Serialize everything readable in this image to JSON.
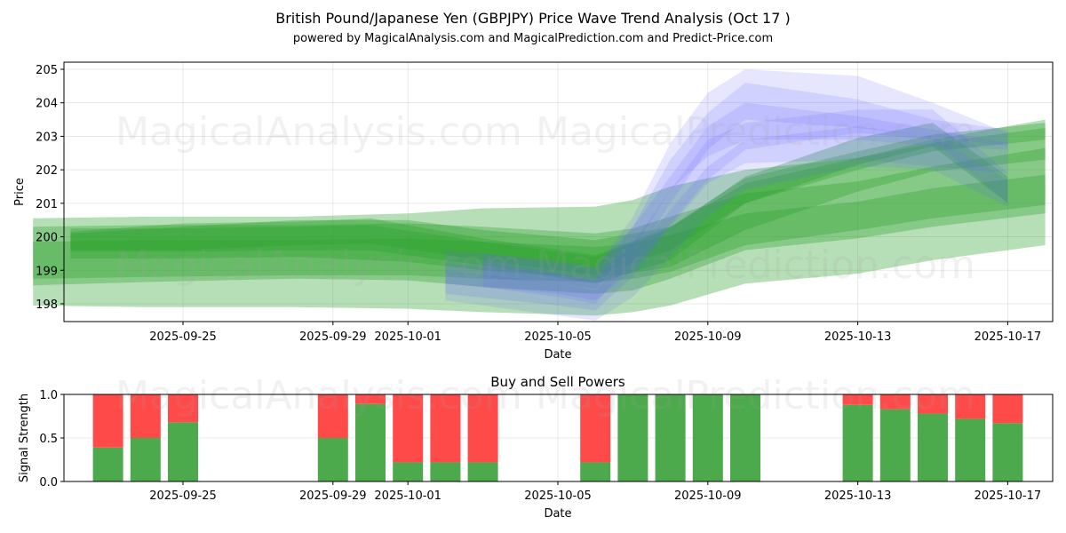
{
  "title": "British Pound/Japanese Yen (GBPJPY) Price Wave Trend Analysis (Oct 17 )",
  "subtitle": "powered by MagicalAnalysis.com and MagicalPrediction.com and Predict-Price.com",
  "watermarks": [
    "MagicalAnalysis.com",
    "MagicalPrediction.com"
  ],
  "colors": {
    "green_band": "#2ca02c",
    "blue_band": "#6666ff",
    "buy": "#4caa4c",
    "sell": "#ff4a4a"
  },
  "chart_data": [
    {
      "type": "area",
      "xlabel": "Date",
      "ylabel": "Price",
      "ylim": [
        197.4,
        205.3
      ],
      "xlim": [
        "2025-09-21",
        "2025-10-18"
      ],
      "y_ticks": [
        198,
        199,
        200,
        201,
        202,
        203,
        204,
        205
      ],
      "x_ticks": [
        "2025-09-25",
        "2025-09-29",
        "2025-10-01",
        "2025-10-05",
        "2025-10-09",
        "2025-10-13",
        "2025-10-17"
      ],
      "grid": true,
      "series": [
        {
          "color": "green",
          "x": [
            "2025-09-21",
            "2025-09-24",
            "2025-09-28",
            "2025-10-01",
            "2025-10-03",
            "2025-10-06",
            "2025-10-07",
            "2025-10-08",
            "2025-10-10",
            "2025-10-13",
            "2025-10-15",
            "2025-10-18"
          ],
          "lower": [
            197.95,
            197.9,
            197.9,
            197.85,
            197.75,
            197.65,
            197.75,
            197.95,
            198.6,
            198.9,
            199.3,
            199.75
          ],
          "upper": [
            200.55,
            200.6,
            200.6,
            200.7,
            200.85,
            200.9,
            201.1,
            201.5,
            202.0,
            202.35,
            202.9,
            203.5
          ]
        },
        {
          "color": "green",
          "x": [
            "2025-09-21",
            "2025-09-24",
            "2025-09-28",
            "2025-10-01",
            "2025-10-03",
            "2025-10-06",
            "2025-10-07",
            "2025-10-08",
            "2025-10-10",
            "2025-10-13",
            "2025-10-15",
            "2025-10-18"
          ],
          "lower": [
            198.55,
            198.65,
            198.75,
            198.7,
            198.5,
            198.3,
            198.4,
            198.75,
            199.6,
            199.95,
            200.3,
            200.7
          ],
          "upper": [
            200.3,
            200.35,
            200.35,
            200.4,
            200.3,
            200.1,
            200.25,
            200.6,
            201.3,
            201.65,
            202.1,
            202.65
          ]
        },
        {
          "color": "green",
          "x": [
            "2025-09-21",
            "2025-09-24",
            "2025-09-28",
            "2025-10-01",
            "2025-10-03",
            "2025-10-06",
            "2025-10-07",
            "2025-10-08",
            "2025-10-10",
            "2025-10-13",
            "2025-10-15",
            "2025-10-18"
          ],
          "lower": [
            198.75,
            198.8,
            198.85,
            198.85,
            198.75,
            198.65,
            198.75,
            198.95,
            199.75,
            200.2,
            200.55,
            200.95
          ],
          "upper": [
            199.85,
            199.9,
            199.9,
            199.95,
            199.85,
            199.7,
            199.8,
            200.05,
            200.7,
            201.05,
            201.45,
            201.85
          ]
        },
        {
          "color": "green",
          "x": [
            "2025-09-22",
            "2025-09-25",
            "2025-09-28",
            "2025-10-01",
            "2025-10-03",
            "2025-10-06",
            "2025-10-08",
            "2025-10-10",
            "2025-10-13",
            "2025-10-15",
            "2025-10-18"
          ],
          "lower": [
            199.35,
            199.35,
            199.4,
            199.25,
            199.0,
            198.75,
            199.1,
            200.2,
            201.35,
            201.95,
            202.3
          ],
          "upper": [
            200.1,
            200.3,
            200.5,
            200.5,
            200.2,
            199.9,
            200.3,
            201.6,
            202.35,
            202.8,
            203.25
          ]
        },
        {
          "color": "green",
          "x": [
            "2025-09-22",
            "2025-09-25",
            "2025-09-28",
            "2025-09-30",
            "2025-10-03",
            "2025-10-06",
            "2025-10-08",
            "2025-10-10",
            "2025-10-13",
            "2025-10-15",
            "2025-10-18"
          ],
          "lower": [
            199.6,
            199.6,
            199.75,
            199.8,
            199.3,
            198.85,
            199.6,
            201.0,
            202.0,
            202.55,
            202.9
          ],
          "upper": [
            200.15,
            200.4,
            200.45,
            200.55,
            199.95,
            199.45,
            200.3,
            201.75,
            202.55,
            203.05,
            203.4
          ]
        },
        {
          "color": "green",
          "x": [
            "2025-09-22",
            "2025-09-25",
            "2025-09-28",
            "2025-09-30",
            "2025-10-03",
            "2025-10-06",
            "2025-10-08",
            "2025-10-10",
            "2025-10-13",
            "2025-10-15",
            "2025-10-17"
          ],
          "lower": [
            199.55,
            199.55,
            199.6,
            199.6,
            199.15,
            198.6,
            199.3,
            201.0,
            202.15,
            202.7,
            201.0
          ],
          "upper": [
            200.25,
            200.25,
            200.3,
            200.35,
            199.85,
            199.4,
            200.25,
            201.8,
            202.95,
            203.4,
            201.8
          ]
        },
        {
          "color": "blue",
          "x": [
            "2025-10-03",
            "2025-10-05",
            "2025-10-06",
            "2025-10-07",
            "2025-10-08",
            "2025-10-09",
            "2025-10-10",
            "2025-10-13",
            "2025-10-15",
            "2025-10-17"
          ],
          "lower": [
            198.8,
            198.6,
            198.45,
            199.6,
            201.4,
            202.4,
            202.9,
            202.9,
            202.7,
            202.6
          ],
          "upper": [
            199.5,
            199.2,
            199.05,
            200.6,
            202.8,
            204.3,
            205.0,
            204.8,
            204.0,
            203.1
          ]
        },
        {
          "color": "blue",
          "x": [
            "2025-10-03",
            "2025-10-05",
            "2025-10-06",
            "2025-10-07",
            "2025-10-08",
            "2025-10-09",
            "2025-10-10",
            "2025-10-13",
            "2025-10-15",
            "2025-10-17"
          ],
          "lower": [
            198.5,
            198.2,
            198.0,
            199.3,
            201.0,
            202.6,
            203.5,
            203.25,
            203.0,
            202.7
          ],
          "upper": [
            199.3,
            198.9,
            198.7,
            200.3,
            202.3,
            203.7,
            204.6,
            204.1,
            203.5,
            203.2
          ]
        },
        {
          "color": "blue",
          "x": [
            "2025-10-02",
            "2025-10-05",
            "2025-10-06",
            "2025-10-07",
            "2025-10-08",
            "2025-10-09",
            "2025-10-10",
            "2025-10-13",
            "2025-10-15",
            "2025-10-17"
          ],
          "lower": [
            198.3,
            197.95,
            197.8,
            198.8,
            200.3,
            201.6,
            202.2,
            202.3,
            202.1,
            201.9
          ],
          "upper": [
            199.6,
            199.3,
            199.1,
            200.3,
            201.8,
            203.3,
            204.0,
            203.6,
            203.2,
            202.8
          ]
        },
        {
          "color": "blue",
          "x": [
            "2025-10-02",
            "2025-10-05",
            "2025-10-06",
            "2025-10-07",
            "2025-10-08",
            "2025-10-09",
            "2025-10-10",
            "2025-10-13",
            "2025-10-15",
            "2025-10-17"
          ],
          "lower": [
            198.6,
            198.3,
            198.1,
            199.0,
            200.4,
            201.7,
            202.6,
            203.1,
            202.9,
            201.0
          ],
          "upper": [
            199.2,
            198.9,
            198.7,
            199.8,
            201.4,
            202.9,
            203.4,
            203.8,
            203.8,
            201.9
          ]
        },
        {
          "color": "blue",
          "x": [
            "2025-10-02",
            "2025-10-05",
            "2025-10-06",
            "2025-10-07",
            "2025-10-08",
            "2025-10-09",
            "2025-10-10",
            "2025-10-13",
            "2025-10-15",
            "2025-10-17"
          ],
          "lower": [
            198.1,
            197.65,
            197.5,
            198.2,
            199.4,
            200.6,
            201.4,
            202.1,
            202.0,
            200.9
          ],
          "upper": [
            199.0,
            198.6,
            198.4,
            199.5,
            200.8,
            202.1,
            202.9,
            203.3,
            203.0,
            201.7
          ]
        }
      ]
    },
    {
      "type": "bar",
      "title": "Buy and Sell Powers",
      "xlabel": "Date",
      "ylabel": "Signal Strength",
      "ylim": [
        0,
        1
      ],
      "y_ticks": [
        "0.0",
        "0.5",
        "1.0"
      ],
      "x_ticks": [
        "2025-09-25",
        "2025-09-29",
        "2025-10-01",
        "2025-10-05",
        "2025-10-09",
        "2025-10-13",
        "2025-10-17"
      ],
      "grid": true,
      "categories": [
        "2025-09-23",
        "2025-09-24",
        "2025-09-25",
        "2025-09-29",
        "2025-09-30",
        "2025-10-01",
        "2025-10-02",
        "2025-10-03",
        "2025-10-06",
        "2025-10-07",
        "2025-10-08",
        "2025-10-09",
        "2025-10-10",
        "2025-10-13",
        "2025-10-14",
        "2025-10-15",
        "2025-10-16",
        "2025-10-17"
      ],
      "series": [
        {
          "name": "Buy",
          "values": [
            0.39,
            0.5,
            0.68,
            0.5,
            0.89,
            0.22,
            0.22,
            0.22,
            0.22,
            1.0,
            1.0,
            1.0,
            1.0,
            0.88,
            0.83,
            0.78,
            0.72,
            0.67
          ]
        },
        {
          "name": "Sell",
          "values": [
            0.61,
            0.5,
            0.32,
            0.5,
            0.11,
            0.78,
            0.78,
            0.78,
            0.78,
            0.0,
            0.0,
            0.0,
            0.0,
            0.12,
            0.17,
            0.22,
            0.28,
            0.33
          ]
        }
      ]
    }
  ]
}
